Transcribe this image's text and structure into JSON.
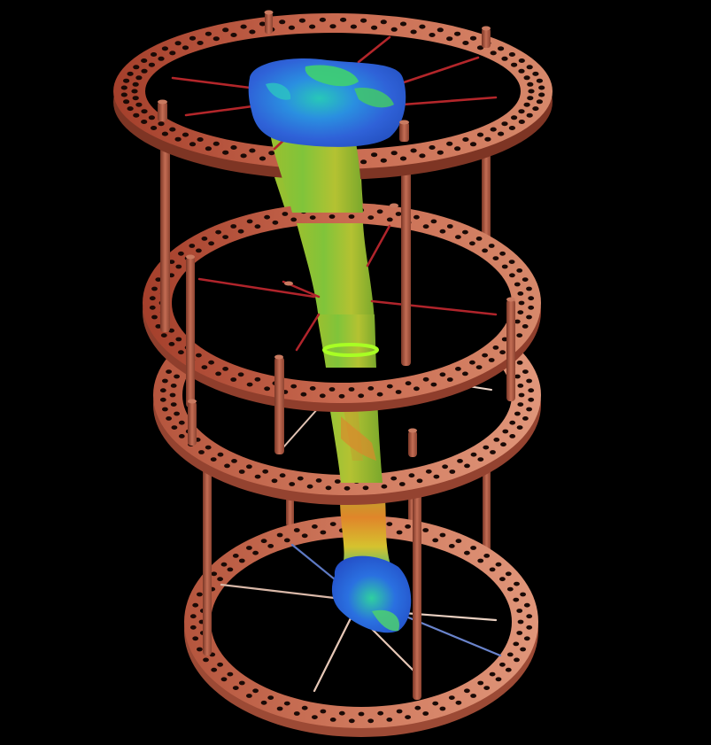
{
  "scene": {
    "background": "#000000",
    "colors": {
      "ring_dark": "#a84a33",
      "ring_mid": "#c4664e",
      "ring_light": "#d98468",
      "ring_edge": "#7e3524",
      "hole": "#1a0a06",
      "rod": "#b35c45",
      "rod_shadow": "#7a3a28",
      "wire_red": "#b0242b",
      "wire_pale": "#e9c9b9",
      "wire_blue": "#5a78c8",
      "bone_green": "#7dc23a",
      "bone_yellow": "#c8c234",
      "bone_orange": "#e0802a",
      "bone_blue": "#2e6fd8",
      "bone_cyan": "#24c4a8",
      "marker_band": "#a8ff24"
    },
    "rings_count": 4,
    "rods_per_level": 4
  }
}
